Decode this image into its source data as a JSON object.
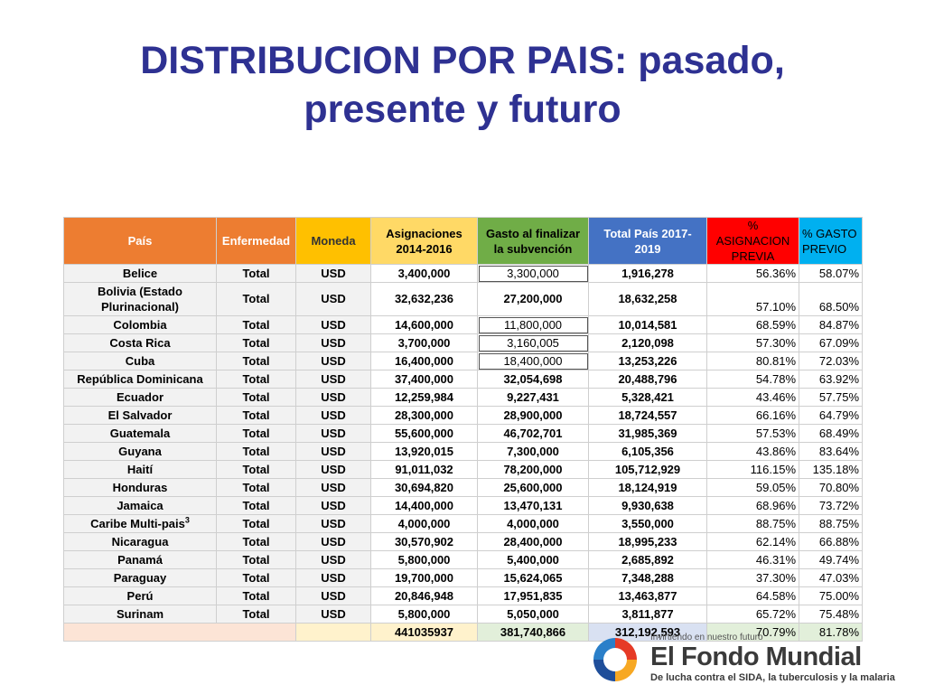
{
  "slide": {
    "title_line1": "DISTRIBUCION POR PAIS: pasado,",
    "title_line2": "presente y futuro"
  },
  "colors": {
    "title": "#2e3192",
    "header_country": "#ed7d31",
    "header_disease": "#ed7d31",
    "header_currency": "#ffc000",
    "header_alloc": "#ffd966",
    "header_spent": "#70ad47",
    "header_total": "#4472c4",
    "header_pct_alloc": "#ff0000",
    "header_pct_spend": "#00b0f0",
    "total_row_country": "#fce4d6",
    "total_row_currency": "#fff2cc",
    "total_row_spent": "#e2efda",
    "total_row_total": "#d9e1f2"
  },
  "table": {
    "headers": {
      "country": "País",
      "disease": "Enfermedad",
      "currency": "Moneda",
      "alloc": "Asignaciones 2014-2016",
      "spent": "Gasto al finalizar la subvención",
      "total": "Total País 2017-2019",
      "pct_alloc": "% ASIGNACION PREVIA",
      "pct_spend": "% GASTO PREVIO"
    },
    "rows": [
      {
        "country": "Belice",
        "disease": "Total",
        "currency": "USD",
        "alloc": "3,400,000",
        "spent": "3,300,000",
        "total": "1,916,278",
        "pct_alloc": "56.36%",
        "pct_spend": "58.07%"
      },
      {
        "country": "Bolivia (Estado Plurinacional)",
        "disease": "Total",
        "currency": "USD",
        "alloc": "32,632,236",
        "spent": "27,200,000",
        "total": "18,632,258",
        "pct_alloc": "57.10%",
        "pct_spend": "68.50%"
      },
      {
        "country": "Colombia",
        "disease": "Total",
        "currency": "USD",
        "alloc": "14,600,000",
        "spent": "11,800,000",
        "total": "10,014,581",
        "pct_alloc": "68.59%",
        "pct_spend": "84.87%"
      },
      {
        "country": "Costa Rica",
        "disease": "Total",
        "currency": "USD",
        "alloc": "3,700,000",
        "spent": "3,160,005",
        "total": "2,120,098",
        "pct_alloc": "57.30%",
        "pct_spend": "67.09%"
      },
      {
        "country": "Cuba",
        "disease": "Total",
        "currency": "USD",
        "alloc": "16,400,000",
        "spent": "18,400,000",
        "total": "13,253,226",
        "pct_alloc": "80.81%",
        "pct_spend": "72.03%"
      },
      {
        "country": "República Dominicana",
        "disease": "Total",
        "currency": "USD",
        "alloc": "37,400,000",
        "spent": "32,054,698",
        "total": "20,488,796",
        "pct_alloc": "54.78%",
        "pct_spend": "63.92%"
      },
      {
        "country": "Ecuador",
        "disease": "Total",
        "currency": "USD",
        "alloc": "12,259,984",
        "spent": "9,227,431",
        "total": "5,328,421",
        "pct_alloc": "43.46%",
        "pct_spend": "57.75%"
      },
      {
        "country": "El Salvador",
        "disease": "Total",
        "currency": "USD",
        "alloc": "28,300,000",
        "spent": "28,900,000",
        "total": "18,724,557",
        "pct_alloc": "66.16%",
        "pct_spend": "64.79%"
      },
      {
        "country": "Guatemala",
        "disease": "Total",
        "currency": "USD",
        "alloc": "55,600,000",
        "spent": "46,702,701",
        "total": "31,985,369",
        "pct_alloc": "57.53%",
        "pct_spend": "68.49%"
      },
      {
        "country": "Guyana",
        "disease": "Total",
        "currency": "USD",
        "alloc": "13,920,015",
        "spent": "7,300,000",
        "total": "6,105,356",
        "pct_alloc": "43.86%",
        "pct_spend": "83.64%"
      },
      {
        "country": "Haití",
        "disease": "Total",
        "currency": "USD",
        "alloc": "91,011,032",
        "spent": "78,200,000",
        "total": "105,712,929",
        "pct_alloc": "116.15%",
        "pct_spend": "135.18%"
      },
      {
        "country": "Honduras",
        "disease": "Total",
        "currency": "USD",
        "alloc": "30,694,820",
        "spent": "25,600,000",
        "total": "18,124,919",
        "pct_alloc": "59.05%",
        "pct_spend": "70.80%"
      },
      {
        "country": "Jamaica",
        "disease": "Total",
        "currency": "USD",
        "alloc": "14,400,000",
        "spent": "13,470,131",
        "total": "9,930,638",
        "pct_alloc": "68.96%",
        "pct_spend": "73.72%"
      },
      {
        "country": "Caribe Multi-pais",
        "country_sup": "3",
        "disease": "Total",
        "currency": "USD",
        "alloc": "4,000,000",
        "spent": "4,000,000",
        "total": "3,550,000",
        "pct_alloc": "88.75%",
        "pct_spend": "88.75%"
      },
      {
        "country": "Nicaragua",
        "disease": "Total",
        "currency": "USD",
        "alloc": "30,570,902",
        "spent": "28,400,000",
        "total": "18,995,233",
        "pct_alloc": "62.14%",
        "pct_spend": "66.88%"
      },
      {
        "country": "Panamá",
        "disease": "Total",
        "currency": "USD",
        "alloc": "5,800,000",
        "spent": "5,400,000",
        "total": "2,685,892",
        "pct_alloc": "46.31%",
        "pct_spend": "49.74%"
      },
      {
        "country": "Paraguay",
        "disease": "Total",
        "currency": "USD",
        "alloc": "19,700,000",
        "spent": "15,624,065",
        "total": "7,348,288",
        "pct_alloc": "37.30%",
        "pct_spend": "47.03%"
      },
      {
        "country": "Perú",
        "disease": "Total",
        "currency": "USD",
        "alloc": "20,846,948",
        "spent": "17,951,835",
        "total": "13,463,877",
        "pct_alloc": "64.58%",
        "pct_spend": "75.00%"
      },
      {
        "country": "Surinam",
        "disease": "Total",
        "currency": "USD",
        "alloc": "5,800,000",
        "spent": "5,050,000",
        "total": "3,811,877",
        "pct_alloc": "65.72%",
        "pct_spend": "75.48%"
      }
    ],
    "totals": {
      "alloc": "441035937",
      "spent": "381,740,866",
      "total": "312,192,593",
      "pct_alloc": "70.79%",
      "pct_spend": "81.78%"
    }
  },
  "logo": {
    "tagline": "Invirtiendo en nuestro futuro",
    "name": "El Fondo Mundial",
    "subtitle": "De lucha contra el SIDA, la tuberculosis y la malaria",
    "icon": "global-fund-swirl-logo"
  }
}
